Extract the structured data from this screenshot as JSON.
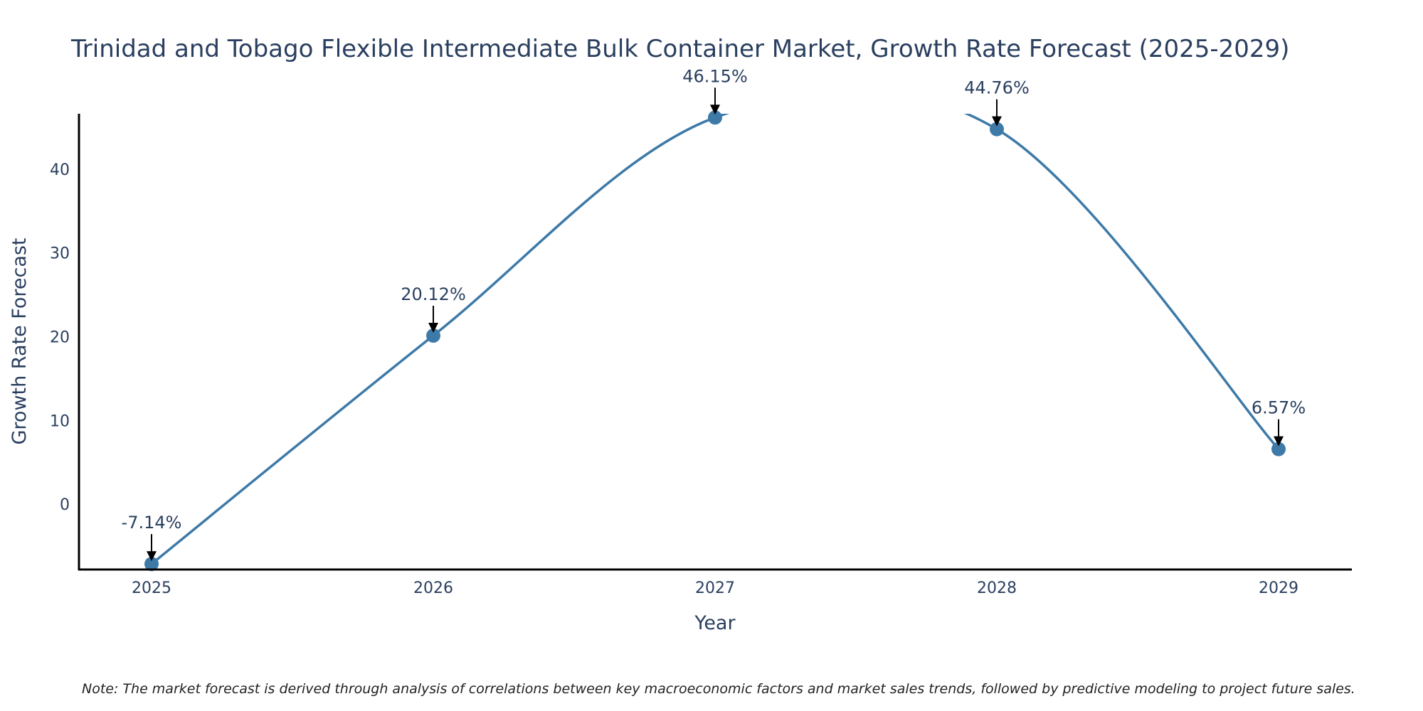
{
  "chart_data": {
    "type": "line",
    "title": "Trinidad and Tobago Flexible Intermediate Bulk Container Market, Growth Rate Forecast (2025-2029)",
    "xlabel": "Year",
    "ylabel": "Growth Rate Forecast",
    "categories": [
      "2025",
      "2026",
      "2027",
      "2028",
      "2029"
    ],
    "series": [
      {
        "name": "Growth Rate Forecast",
        "values": [
          -7.14,
          20.12,
          46.15,
          44.76,
          6.57
        ]
      }
    ],
    "data_labels": [
      "-7.14%",
      "20.12%",
      "46.15%",
      "44.76%",
      "6.57%"
    ],
    "yticks": [
      0,
      10,
      20,
      30,
      40
    ],
    "ylim": [
      -7.8,
      46.6
    ],
    "line_shape": "spline",
    "grid": false,
    "colors": {
      "line": "#3d7aa8",
      "marker": "#3d7aa8",
      "axis": "#000000",
      "arrow": "#000000"
    },
    "note": "Note: The market forecast is derived through analysis of correlations between key macroeconomic factors and market sales trends, followed by predictive modeling to project future sales."
  }
}
